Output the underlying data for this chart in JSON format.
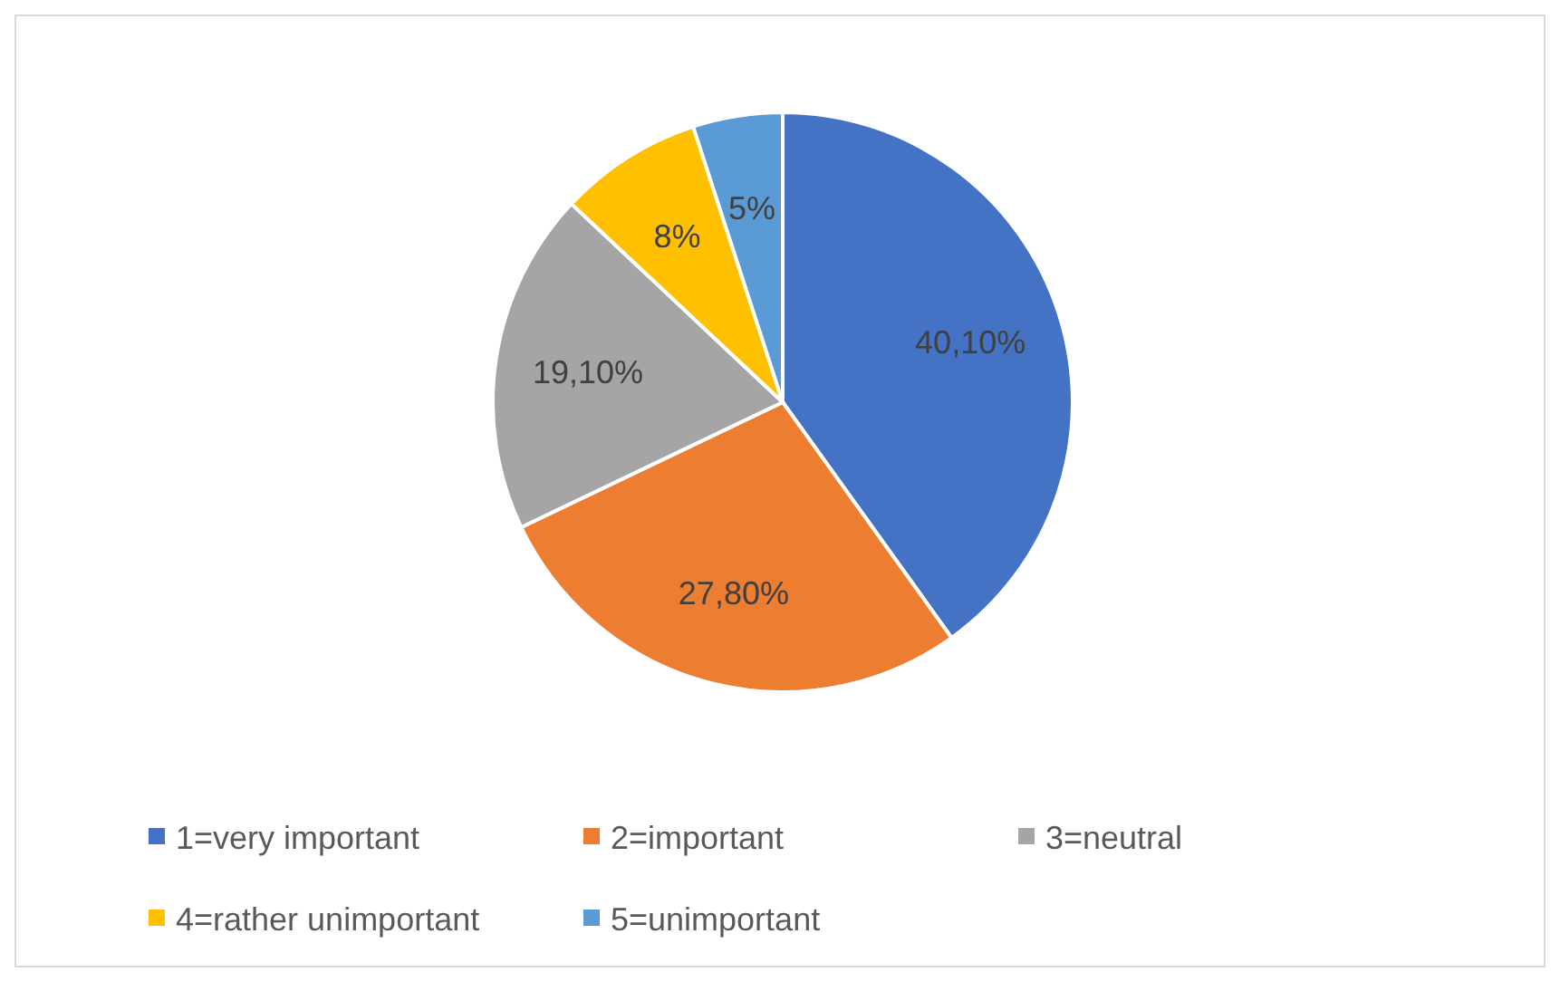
{
  "chart_data": {
    "type": "pie",
    "categories": [
      "1=very important",
      "2=important",
      "3=neutral",
      "4=rather unimportant",
      "5=unimportant"
    ],
    "values": [
      40.1,
      27.8,
      19.1,
      8,
      5
    ],
    "value_labels": [
      "40,10%",
      "27,80%",
      "19,10%",
      "8%",
      "5%"
    ],
    "colors": [
      "#4472c4",
      "#ed7d31",
      "#a5a5a5",
      "#ffc000",
      "#5b9bd5"
    ],
    "legend": "bottom"
  }
}
